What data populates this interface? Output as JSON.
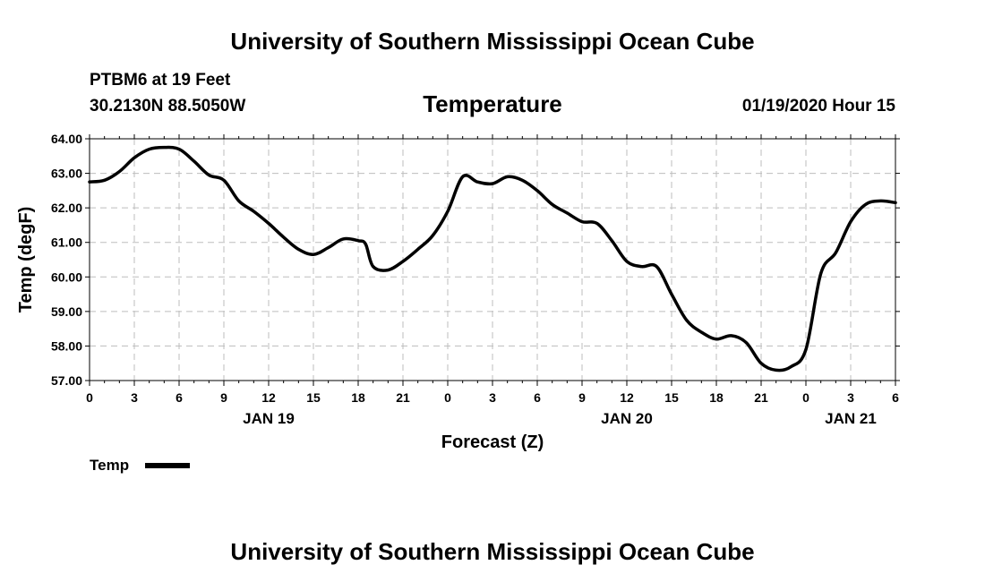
{
  "header": {
    "title_top": "University of Southern Mississippi Ocean Cube",
    "station": "PTBM6 at 19 Feet",
    "coords": "30.2130N 88.5050W",
    "datetime": "01/19/2020 Hour 15",
    "title_bottom": "University of Southern Mississippi Ocean Cube"
  },
  "legend": {
    "label": "Temp",
    "color": "#000000"
  },
  "chart_data": {
    "type": "line",
    "title": "Temperature",
    "xlabel": "Forecast (Z)",
    "ylabel": "Temp (degF)",
    "ylim": [
      57.0,
      64.0
    ],
    "xlim": [
      0,
      54
    ],
    "grid": true,
    "y_ticks": [
      "57.00",
      "58.00",
      "59.00",
      "60.00",
      "61.00",
      "62.00",
      "63.00",
      "64.00"
    ],
    "x_tick_labels": [
      "0",
      "3",
      "6",
      "9",
      "12",
      "15",
      "18",
      "21",
      "0",
      "3",
      "6",
      "9",
      "12",
      "15",
      "18",
      "21",
      "0",
      "3",
      "6"
    ],
    "day_labels": [
      {
        "label": "JAN 19",
        "hour": 12
      },
      {
        "label": "JAN 20",
        "hour": 36
      },
      {
        "label": "JAN 21",
        "hour": 51
      }
    ],
    "series": [
      {
        "name": "Temp",
        "color": "#000000",
        "x": [
          0,
          1,
          2,
          3,
          4,
          5,
          6,
          7,
          8,
          9,
          10,
          11,
          12,
          13,
          14,
          15,
          16,
          17,
          18,
          18.5,
          19,
          20,
          21,
          22,
          23,
          24,
          25,
          26,
          27,
          28,
          29,
          30,
          31,
          32,
          33,
          34,
          35,
          36,
          37,
          38,
          39,
          40,
          41,
          42,
          43,
          44,
          45,
          46,
          47,
          48,
          49,
          50,
          51,
          52,
          53,
          54
        ],
        "values": [
          62.75,
          62.8,
          63.05,
          63.45,
          63.7,
          63.75,
          63.7,
          63.35,
          62.95,
          62.8,
          62.2,
          61.9,
          61.55,
          61.15,
          60.8,
          60.65,
          60.85,
          61.1,
          61.05,
          60.95,
          60.3,
          60.2,
          60.45,
          60.8,
          61.2,
          61.9,
          62.9,
          62.75,
          62.7,
          62.9,
          62.8,
          62.5,
          62.1,
          61.85,
          61.6,
          61.55,
          61.05,
          60.45,
          60.3,
          60.3,
          59.5,
          58.75,
          58.4,
          58.2,
          58.3,
          58.1,
          57.5,
          57.3,
          57.4,
          57.9,
          60.1,
          60.7,
          61.6,
          62.1,
          62.2,
          62.15
        ]
      }
    ]
  }
}
